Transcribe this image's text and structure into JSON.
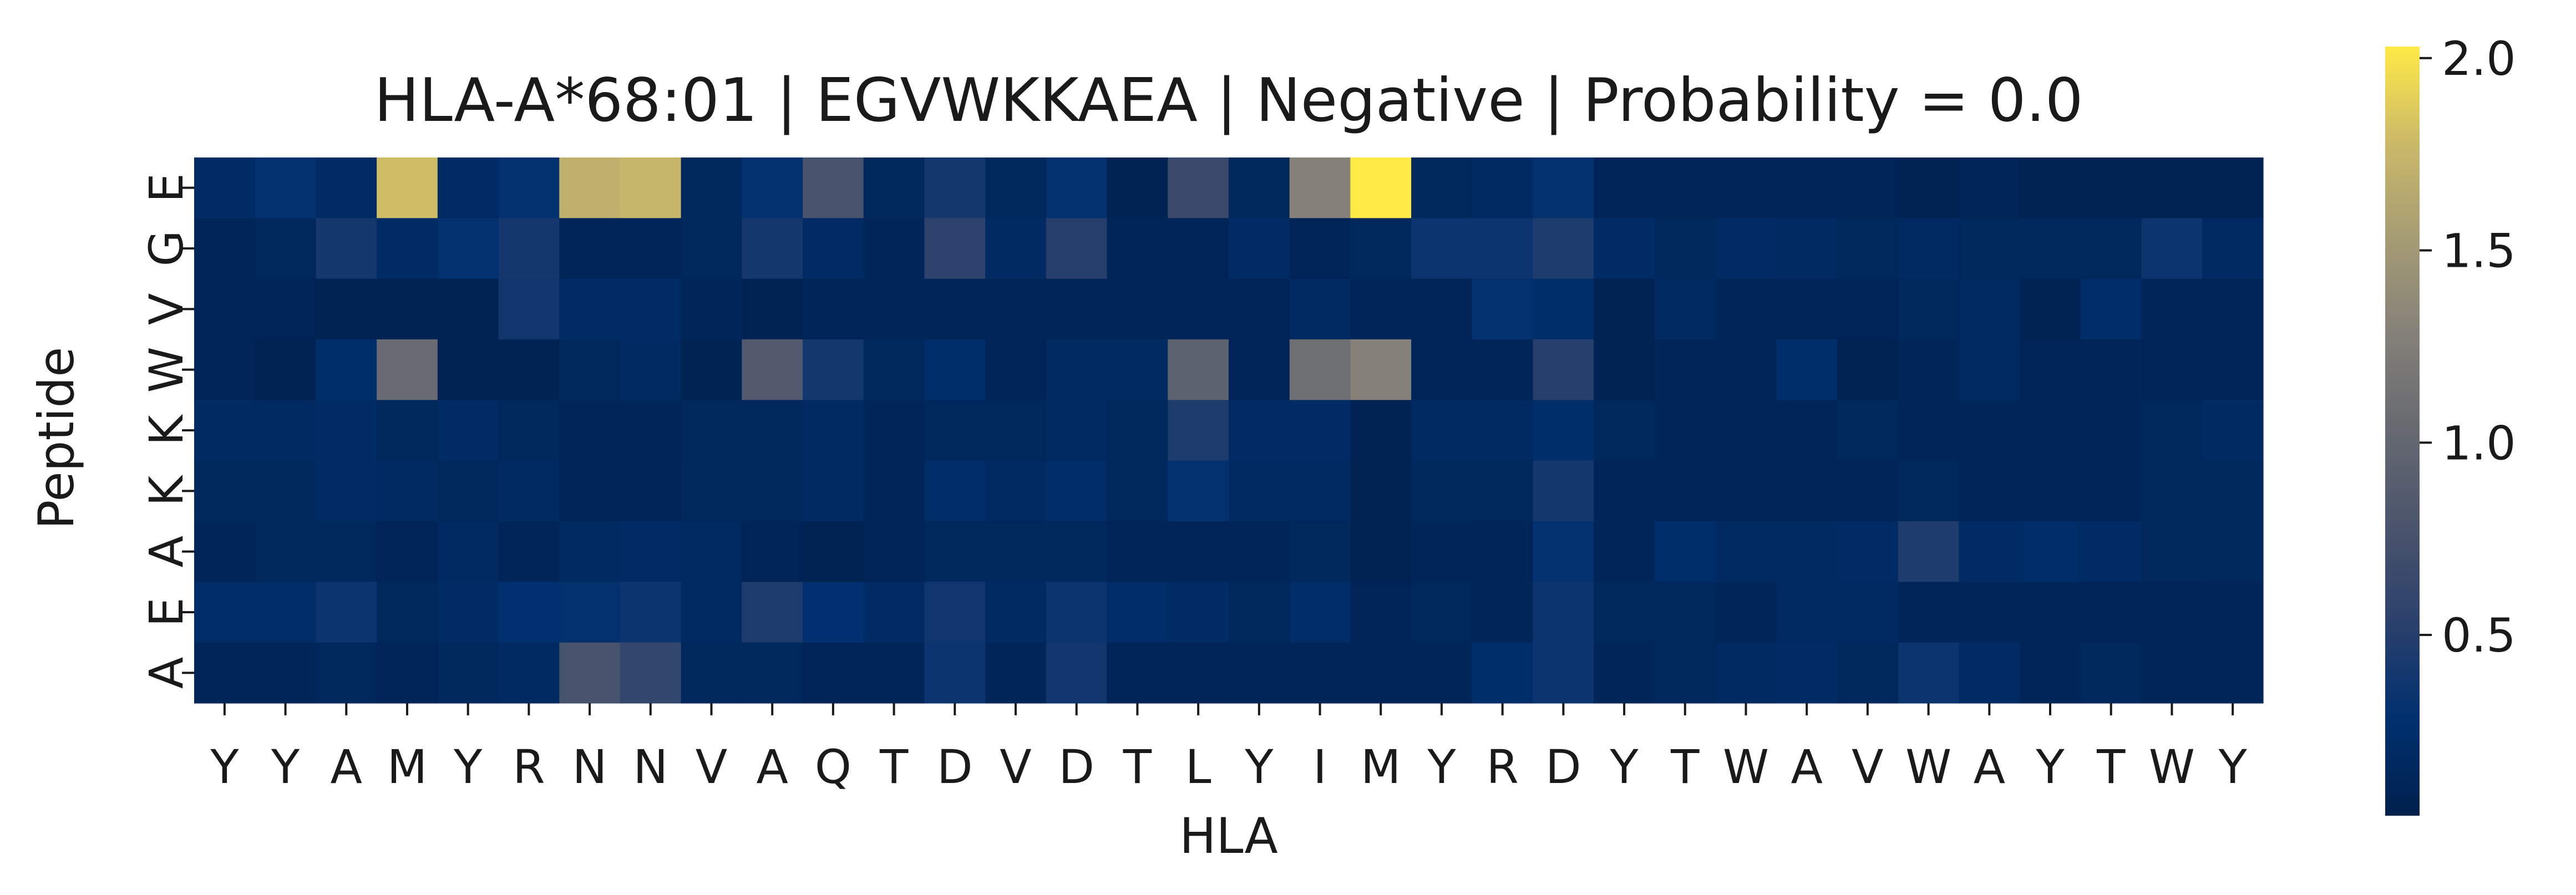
{
  "chart_data": {
    "type": "heatmap",
    "title": "HLA-A*68:01 | EGVWKKAEA | Negative | Probability = 0.0",
    "xlabel": "HLA",
    "ylabel": "Peptide",
    "x_categories": [
      "Y",
      "Y",
      "A",
      "M",
      "Y",
      "R",
      "N",
      "N",
      "V",
      "A",
      "Q",
      "T",
      "D",
      "V",
      "D",
      "T",
      "L",
      "Y",
      "I",
      "M",
      "Y",
      "R",
      "D",
      "Y",
      "T",
      "W",
      "A",
      "V",
      "W",
      "A",
      "Y",
      "T",
      "W",
      "Y"
    ],
    "y_categories": [
      "E",
      "G",
      "V",
      "W",
      "K",
      "K",
      "A",
      "E",
      "A"
    ],
    "colormap": "cividis",
    "colorbar": {
      "min": 0.03,
      "max": 2.03,
      "ticks": [
        0.5,
        1.0,
        1.5,
        2.0
      ],
      "tick_labels": [
        "0.5",
        "1.0",
        "1.5",
        "2.0"
      ]
    },
    "values": [
      [
        0.2,
        0.3,
        0.2,
        1.8,
        0.2,
        0.3,
        1.7,
        1.75,
        0.15,
        0.3,
        0.75,
        0.15,
        0.4,
        0.15,
        0.3,
        0.08,
        0.65,
        0.15,
        1.3,
        2.03,
        0.15,
        0.18,
        0.3,
        0.1,
        0.1,
        0.1,
        0.12,
        0.1,
        0.08,
        0.1,
        0.08,
        0.08,
        0.08,
        0.08
      ],
      [
        0.12,
        0.15,
        0.4,
        0.2,
        0.3,
        0.4,
        0.12,
        0.12,
        0.15,
        0.4,
        0.2,
        0.12,
        0.55,
        0.18,
        0.5,
        0.12,
        0.1,
        0.2,
        0.1,
        0.15,
        0.35,
        0.35,
        0.45,
        0.2,
        0.15,
        0.2,
        0.18,
        0.15,
        0.18,
        0.15,
        0.15,
        0.15,
        0.35,
        0.18
      ],
      [
        0.1,
        0.1,
        0.08,
        0.08,
        0.08,
        0.38,
        0.2,
        0.2,
        0.12,
        0.08,
        0.12,
        0.12,
        0.12,
        0.1,
        0.12,
        0.12,
        0.12,
        0.1,
        0.18,
        0.12,
        0.1,
        0.3,
        0.25,
        0.08,
        0.18,
        0.12,
        0.12,
        0.1,
        0.15,
        0.18,
        0.08,
        0.22,
        0.12,
        0.1
      ],
      [
        0.1,
        0.08,
        0.25,
        1.05,
        0.08,
        0.08,
        0.15,
        0.18,
        0.08,
        0.85,
        0.4,
        0.15,
        0.25,
        0.1,
        0.18,
        0.18,
        0.95,
        0.1,
        1.1,
        1.3,
        0.12,
        0.12,
        0.5,
        0.08,
        0.12,
        0.12,
        0.25,
        0.08,
        0.12,
        0.18,
        0.1,
        0.12,
        0.1,
        0.1
      ],
      [
        0.18,
        0.18,
        0.2,
        0.15,
        0.2,
        0.15,
        0.12,
        0.12,
        0.15,
        0.15,
        0.18,
        0.12,
        0.15,
        0.15,
        0.18,
        0.15,
        0.45,
        0.2,
        0.2,
        0.08,
        0.18,
        0.18,
        0.25,
        0.15,
        0.12,
        0.12,
        0.12,
        0.15,
        0.12,
        0.12,
        0.12,
        0.12,
        0.15,
        0.18
      ],
      [
        0.15,
        0.15,
        0.2,
        0.18,
        0.15,
        0.18,
        0.1,
        0.1,
        0.15,
        0.15,
        0.18,
        0.12,
        0.22,
        0.18,
        0.22,
        0.15,
        0.3,
        0.18,
        0.18,
        0.08,
        0.15,
        0.15,
        0.4,
        0.12,
        0.12,
        0.12,
        0.12,
        0.12,
        0.15,
        0.12,
        0.12,
        0.12,
        0.15,
        0.15
      ],
      [
        0.12,
        0.15,
        0.15,
        0.1,
        0.18,
        0.12,
        0.18,
        0.2,
        0.18,
        0.1,
        0.08,
        0.12,
        0.15,
        0.15,
        0.15,
        0.1,
        0.1,
        0.12,
        0.15,
        0.08,
        0.12,
        0.1,
        0.3,
        0.12,
        0.25,
        0.18,
        0.18,
        0.2,
        0.45,
        0.2,
        0.22,
        0.2,
        0.15,
        0.15
      ],
      [
        0.22,
        0.22,
        0.35,
        0.15,
        0.2,
        0.28,
        0.3,
        0.35,
        0.18,
        0.45,
        0.28,
        0.2,
        0.38,
        0.18,
        0.35,
        0.22,
        0.2,
        0.15,
        0.22,
        0.1,
        0.15,
        0.12,
        0.35,
        0.15,
        0.15,
        0.12,
        0.18,
        0.18,
        0.12,
        0.12,
        0.12,
        0.1,
        0.1,
        0.12
      ],
      [
        0.12,
        0.12,
        0.15,
        0.1,
        0.15,
        0.18,
        0.75,
        0.6,
        0.15,
        0.15,
        0.1,
        0.12,
        0.35,
        0.12,
        0.38,
        0.1,
        0.1,
        0.12,
        0.12,
        0.1,
        0.12,
        0.25,
        0.35,
        0.12,
        0.15,
        0.18,
        0.2,
        0.15,
        0.35,
        0.2,
        0.12,
        0.15,
        0.12,
        0.12
      ]
    ]
  }
}
